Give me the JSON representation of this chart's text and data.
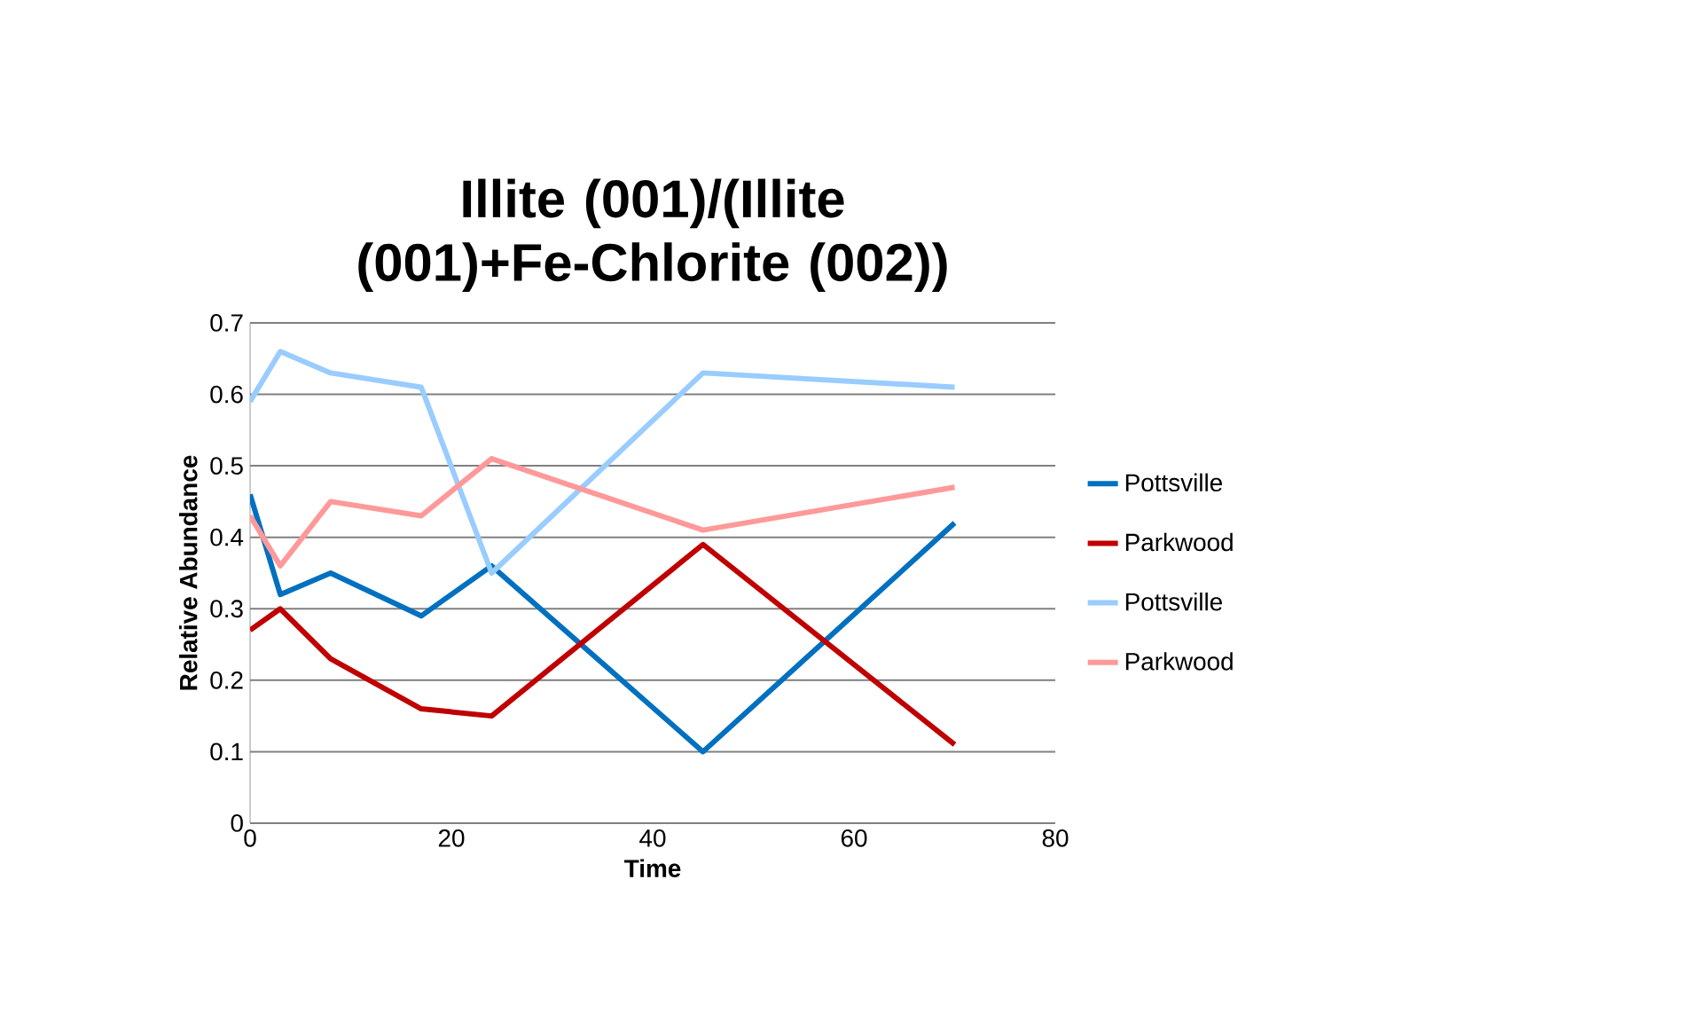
{
  "chart_data": {
    "type": "line",
    "title": "Illite (001)/(Illite (001)+Fe-Chlorite (002))",
    "xlabel": "Time",
    "ylabel": "Relative Abundance",
    "x": [
      0,
      3,
      8,
      17,
      24,
      45,
      70
    ],
    "series": [
      {
        "name": "Pottsville",
        "color": "#0070c0",
        "values": [
          0.46,
          0.32,
          0.35,
          0.29,
          0.36,
          0.1,
          0.42
        ]
      },
      {
        "name": "Parkwood",
        "color": "#c00000",
        "values": [
          0.27,
          0.3,
          0.23,
          0.16,
          0.15,
          0.39,
          0.11
        ]
      },
      {
        "name": "Pottsville",
        "color": "#99ccff",
        "values": [
          0.59,
          0.66,
          0.63,
          0.61,
          0.35,
          0.63,
          0.61
        ]
      },
      {
        "name": "Parkwood",
        "color": "#ff9999",
        "values": [
          0.43,
          0.36,
          0.45,
          0.43,
          0.51,
          0.41,
          0.47
        ]
      }
    ],
    "xlim": [
      0,
      80
    ],
    "xticks": [
      0,
      20,
      40,
      60,
      80
    ],
    "ylim": [
      0,
      0.7
    ],
    "yticks": [
      0,
      0.1,
      0.2,
      0.3,
      0.4,
      0.5,
      0.6,
      0.7
    ],
    "grid": "y",
    "legend": "right",
    "marker": "none",
    "line_style": "solid"
  }
}
